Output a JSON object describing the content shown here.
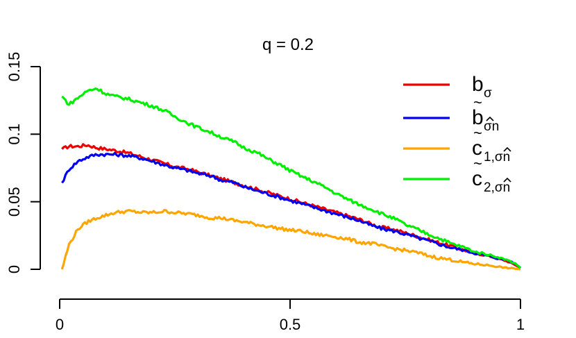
{
  "chart_data": {
    "type": "line",
    "title": "q = 0.2",
    "xlabel": "",
    "ylabel": "",
    "xlim": [
      0,
      1
    ],
    "ylim": [
      0,
      0.15
    ],
    "x_ticks": [
      {
        "value": 0,
        "label": "0"
      },
      {
        "value": 0.5,
        "label": "0.5"
      },
      {
        "value": 1,
        "label": "1"
      }
    ],
    "y_ticks": [
      {
        "value": 0,
        "label": "0"
      },
      {
        "value": 0.05,
        "label": "0.05"
      },
      {
        "value": 0.1,
        "label": "0.1"
      },
      {
        "value": 0.15,
        "label": "0.15"
      }
    ],
    "grid": false,
    "legend_position": "top-right",
    "x": [
      0.005,
      0.02,
      0.04,
      0.06,
      0.08,
      0.1,
      0.12,
      0.15,
      0.18,
      0.2,
      0.23,
      0.25,
      0.28,
      0.3,
      0.33,
      0.35,
      0.38,
      0.4,
      0.43,
      0.45,
      0.48,
      0.5,
      0.53,
      0.55,
      0.58,
      0.6,
      0.63,
      0.65,
      0.68,
      0.7,
      0.73,
      0.75,
      0.78,
      0.8,
      0.83,
      0.85,
      0.88,
      0.9,
      0.93,
      0.95,
      0.97,
      0.99,
      1.0
    ],
    "series": [
      {
        "name": "b_σ",
        "color": "#ee0000",
        "values": [
          0.089,
          0.091,
          0.091,
          0.092,
          0.09,
          0.089,
          0.088,
          0.086,
          0.083,
          0.081,
          0.078,
          0.076,
          0.074,
          0.072,
          0.069,
          0.067,
          0.064,
          0.062,
          0.059,
          0.057,
          0.054,
          0.052,
          0.049,
          0.047,
          0.044,
          0.042,
          0.039,
          0.037,
          0.033,
          0.031,
          0.029,
          0.027,
          0.024,
          0.022,
          0.019,
          0.017,
          0.014,
          0.012,
          0.01,
          0.008,
          0.006,
          0.003,
          0.001
        ]
      },
      {
        "name": "b̃_σ̂n",
        "color": "#0000ee",
        "values": [
          0.064,
          0.074,
          0.08,
          0.083,
          0.085,
          0.085,
          0.085,
          0.084,
          0.082,
          0.08,
          0.077,
          0.075,
          0.073,
          0.071,
          0.069,
          0.066,
          0.064,
          0.061,
          0.058,
          0.056,
          0.053,
          0.051,
          0.048,
          0.046,
          0.043,
          0.041,
          0.038,
          0.036,
          0.032,
          0.03,
          0.028,
          0.026,
          0.023,
          0.021,
          0.018,
          0.016,
          0.014,
          0.012,
          0.01,
          0.008,
          0.007,
          0.004,
          0.001
        ]
      },
      {
        "name": "c̃_1,σ̂n",
        "color": "#ffa500",
        "values": [
          0.0,
          0.018,
          0.03,
          0.035,
          0.038,
          0.04,
          0.042,
          0.043,
          0.042,
          0.042,
          0.043,
          0.042,
          0.041,
          0.04,
          0.038,
          0.038,
          0.036,
          0.035,
          0.033,
          0.032,
          0.03,
          0.029,
          0.028,
          0.026,
          0.025,
          0.024,
          0.022,
          0.02,
          0.019,
          0.017,
          0.015,
          0.014,
          0.012,
          0.01,
          0.008,
          0.007,
          0.005,
          0.004,
          0.003,
          0.002,
          0.001,
          0.0005,
          0.0
        ]
      },
      {
        "name": "c̃_2,σ̂n",
        "color": "#00ee00",
        "values": [
          0.128,
          0.122,
          0.127,
          0.132,
          0.134,
          0.13,
          0.128,
          0.126,
          0.123,
          0.121,
          0.117,
          0.113,
          0.108,
          0.105,
          0.101,
          0.098,
          0.094,
          0.09,
          0.086,
          0.082,
          0.077,
          0.073,
          0.068,
          0.065,
          0.06,
          0.056,
          0.051,
          0.048,
          0.044,
          0.041,
          0.037,
          0.033,
          0.029,
          0.026,
          0.022,
          0.019,
          0.016,
          0.013,
          0.011,
          0.009,
          0.007,
          0.004,
          0.001
        ]
      }
    ]
  },
  "legend": [
    {
      "base": "b",
      "tilde": "",
      "sub": "σ",
      "hat": false,
      "color": "#ee0000"
    },
    {
      "base": "b",
      "tilde": "~",
      "sub": "σn",
      "hat": true,
      "color": "#0000ee"
    },
    {
      "base": "c",
      "tilde": "~",
      "sub": "1,σn",
      "hat": true,
      "color": "#ffa500"
    },
    {
      "base": "c",
      "tilde": "~",
      "sub": "2,σn",
      "hat": true,
      "color": "#00ee00"
    }
  ]
}
